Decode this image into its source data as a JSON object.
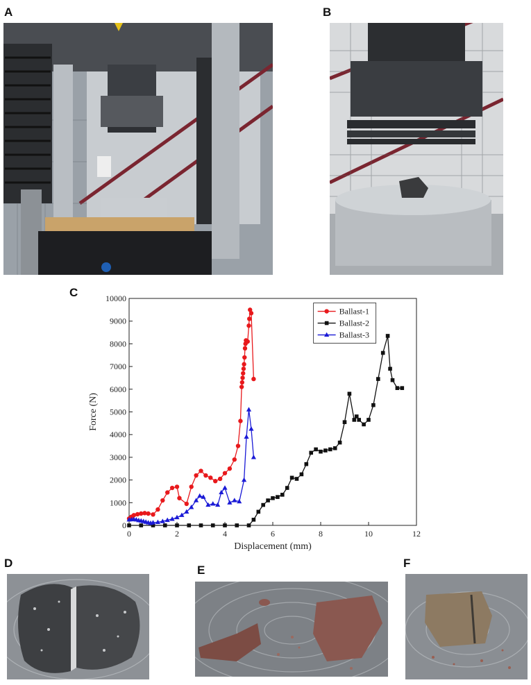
{
  "panels": {
    "a": "A",
    "b": "B",
    "c": "C",
    "d": "D",
    "e": "E",
    "f": "F"
  },
  "chart_data": {
    "type": "line",
    "xlabel": "Displacement (mm)",
    "ylabel": "Force (N)",
    "xlim": [
      0,
      12
    ],
    "ylim": [
      0,
      10000
    ],
    "xticks": [
      0,
      2,
      4,
      6,
      8,
      10,
      12
    ],
    "yticks": [
      0,
      1000,
      2000,
      3000,
      4000,
      5000,
      6000,
      7000,
      8000,
      9000,
      10000
    ],
    "legend_position": "top-right",
    "series": [
      {
        "name": "Ballast-1",
        "color": "#e8191c",
        "marker": "circle",
        "x": [
          0,
          0.1,
          0.2,
          0.35,
          0.5,
          0.65,
          0.8,
          1.0,
          1.2,
          1.4,
          1.6,
          1.8,
          2.0,
          2.1,
          2.4,
          2.6,
          2.8,
          3.0,
          3.2,
          3.4,
          3.6,
          3.8,
          4.0,
          4.2,
          4.4,
          4.55,
          4.65,
          4.7,
          4.72,
          4.74,
          4.76,
          4.78,
          4.8,
          4.82,
          4.84,
          4.86,
          4.88,
          4.9,
          4.95,
          5.0,
          5.02,
          5.05,
          5.1,
          5.2
        ],
        "y": [
          300,
          380,
          450,
          490,
          520,
          540,
          520,
          480,
          700,
          1100,
          1450,
          1650,
          1700,
          1200,
          950,
          1700,
          2200,
          2400,
          2200,
          2100,
          1950,
          2050,
          2300,
          2500,
          2900,
          3500,
          4600,
          6100,
          6300,
          6500,
          6700,
          6900,
          7100,
          7400,
          7800,
          8000,
          8150,
          8100,
          8100,
          8800,
          9100,
          9500,
          9350,
          6450
        ]
      },
      {
        "name": "Ballast-2",
        "color": "#111111",
        "marker": "square",
        "x": [
          0,
          0.5,
          1,
          1.5,
          2,
          2.5,
          3,
          3.5,
          4,
          4.5,
          5.0,
          5.2,
          5.4,
          5.6,
          5.8,
          6.0,
          6.2,
          6.4,
          6.6,
          6.8,
          7.0,
          7.2,
          7.4,
          7.6,
          7.8,
          8.0,
          8.2,
          8.4,
          8.6,
          8.8,
          9.0,
          9.2,
          9.4,
          9.5,
          9.6,
          9.8,
          10.0,
          10.2,
          10.4,
          10.6,
          10.8,
          10.9,
          11.0,
          11.2,
          11.4
        ],
        "y": [
          0,
          0,
          0,
          0,
          0,
          0,
          0,
          0,
          0,
          0,
          0,
          250,
          600,
          900,
          1100,
          1200,
          1250,
          1350,
          1650,
          2100,
          2050,
          2250,
          2700,
          3200,
          3350,
          3250,
          3300,
          3350,
          3400,
          3650,
          4550,
          5800,
          4650,
          4800,
          4650,
          4450,
          4650,
          5300,
          6450,
          7600,
          8350,
          6900,
          6400,
          6050,
          6050
        ]
      },
      {
        "name": "Ballast-3",
        "color": "#1a1ad6",
        "marker": "triangle",
        "x": [
          0,
          0.1,
          0.2,
          0.3,
          0.4,
          0.5,
          0.6,
          0.7,
          0.8,
          0.9,
          1.0,
          1.2,
          1.4,
          1.6,
          1.8,
          2.0,
          2.2,
          2.4,
          2.6,
          2.8,
          2.95,
          3.1,
          3.3,
          3.5,
          3.7,
          3.85,
          4.0,
          4.2,
          4.4,
          4.6,
          4.8,
          4.9,
          5.0,
          5.1,
          5.2
        ],
        "y": [
          250,
          260,
          270,
          250,
          220,
          200,
          180,
          150,
          120,
          100,
          120,
          140,
          180,
          230,
          280,
          350,
          450,
          600,
          800,
          1100,
          1300,
          1250,
          900,
          950,
          900,
          1450,
          1650,
          1000,
          1100,
          1050,
          2000,
          3900,
          5100,
          4250,
          3000
        ]
      }
    ]
  }
}
